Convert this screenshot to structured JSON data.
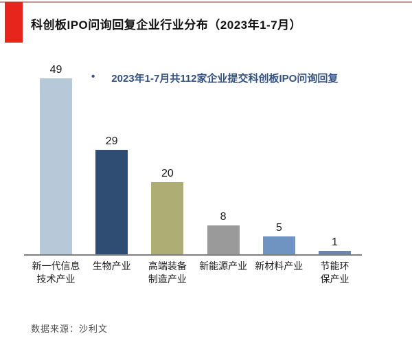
{
  "page": {
    "title": "科创板IPO问询回复企业行业分布（2023年1-7月）",
    "source_note": "数据来源：沙利文"
  },
  "annotation": {
    "bullet": "•",
    "text": "2023年1-7月共112家企业提交科创板IPO问询回复"
  },
  "colors": {
    "accent_red": "#e8251d",
    "top_rule": "#c79490",
    "axis_line": "#7f7f7f",
    "annotation_text": "#33527f"
  },
  "chart_data": {
    "type": "bar",
    "title": "科创板IPO问询回复企业行业分布（2023年1-7月）",
    "categories": [
      "新一代信息技术产业",
      "生物产业",
      "高端装备制造产业",
      "新能源产业",
      "新材料产业",
      "节能环保产业"
    ],
    "category_labels_wrapped": [
      "新一代信息\n技术产业",
      "生物产业",
      "高端装备\n制造产业",
      "新能源产业",
      "新材料产业",
      "节能环\n保产业"
    ],
    "values": [
      49,
      29,
      20,
      8,
      5,
      1
    ],
    "bar_colors": [
      "#b7c9d9",
      "#2f4d72",
      "#aeae74",
      "#9a9a9a",
      "#7094c1",
      "#6d87a8"
    ],
    "data_labels_shown": true,
    "annotation": "2023年1-7月共112家企业提交科创板IPO问询回复",
    "xlabel": "",
    "ylabel": "",
    "ylim": [
      0,
      52
    ],
    "grid": false,
    "legend": false,
    "y_axis_shown": false
  }
}
